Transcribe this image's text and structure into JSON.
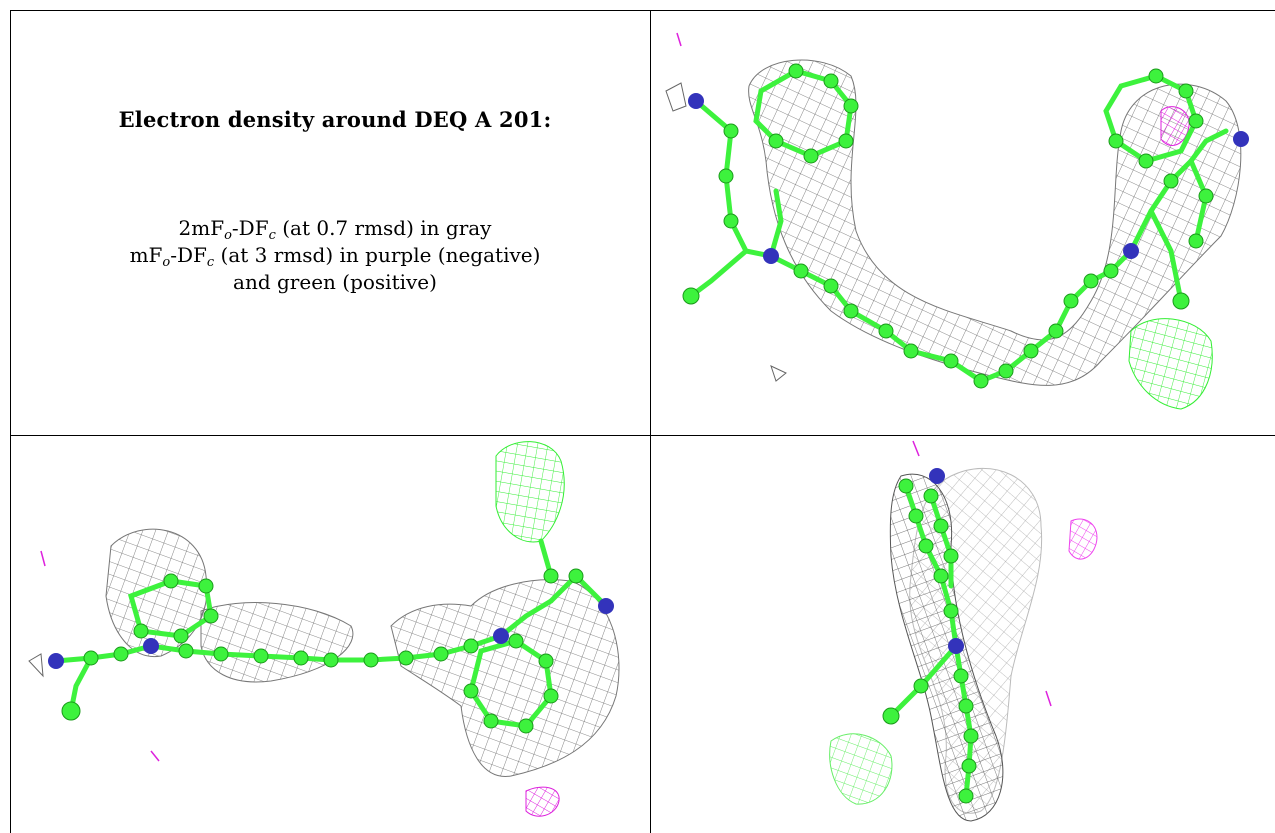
{
  "caption": {
    "title": "Electron density around DEQ A 201:",
    "line1": {
      "pre": "2mF",
      "sub1": "o",
      "mid": "-DF",
      "sub2": "c",
      "post": " (at 0.7 rmsd) in gray"
    },
    "line2": {
      "pre": "mF",
      "sub1": "o",
      "mid": "-DF",
      "sub2": "c",
      "post": " (at 3 rmsd) in purple (negative)"
    },
    "line3": "and green (positive)"
  },
  "colors": {
    "carbon": "#3df23d",
    "nitrogen": "#3333bb",
    "mesh_2fofc": "#555555",
    "mesh_positive": "#33ee33",
    "mesh_negative": "#dd22dd"
  },
  "panels": [
    {
      "icon": "electron-density-view-1"
    },
    {
      "icon": "electron-density-view-2"
    },
    {
      "icon": "electron-density-view-3"
    }
  ]
}
